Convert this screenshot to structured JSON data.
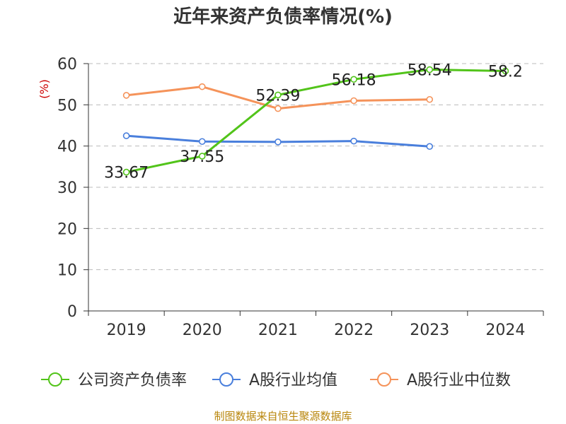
{
  "chart_data": {
    "type": "line",
    "title": "近年来资产负债率情况(%)",
    "ylabel": "(%)",
    "categories": [
      "2019",
      "2020",
      "2021",
      "2022",
      "2023",
      "2024"
    ],
    "ylim": [
      0,
      60
    ],
    "yticks": [
      0,
      10,
      20,
      30,
      40,
      50,
      60
    ],
    "grid": true,
    "legend_position": "bottom",
    "series": [
      {
        "name": "公司资产负债率",
        "color": "#52c41a",
        "values": [
          33.67,
          37.55,
          52.39,
          56.18,
          58.54,
          58.2
        ],
        "labels": [
          "33.67",
          "37.55",
          "52.39",
          "56.18",
          "58.54",
          "58.2"
        ]
      },
      {
        "name": "A股行业均值",
        "color": "#4a7fdc",
        "values": [
          42.5,
          41.1,
          41.0,
          41.2,
          39.9,
          null
        ],
        "labels": null
      },
      {
        "name": "A股行业中位数",
        "color": "#f5935a",
        "values": [
          52.3,
          54.4,
          49.1,
          51.0,
          51.3,
          null
        ],
        "labels": null
      }
    ]
  },
  "source_text": "制图数据来自恒生聚源数据库"
}
